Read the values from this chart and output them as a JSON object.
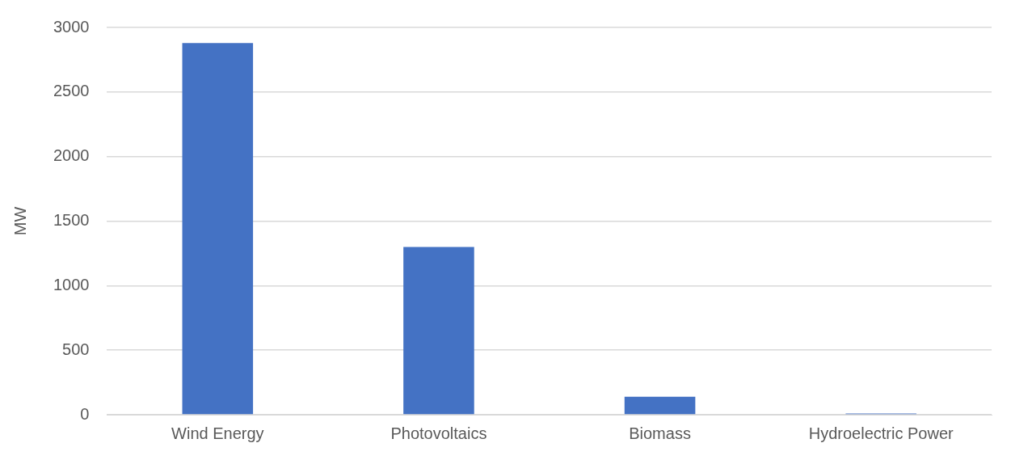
{
  "chart_data": {
    "type": "bar",
    "ylabel": "MW",
    "categories": [
      "Wind Energy",
      "Photovoltaics",
      "Biomass",
      "Hydroelectric Power"
    ],
    "values": [
      2880,
      1300,
      140,
      10
    ],
    "color": "#4472c4",
    "ylim": [
      0,
      3000
    ],
    "yticks": [
      0,
      500,
      1000,
      1500,
      2000,
      2500,
      3000
    ],
    "grid": "y"
  }
}
